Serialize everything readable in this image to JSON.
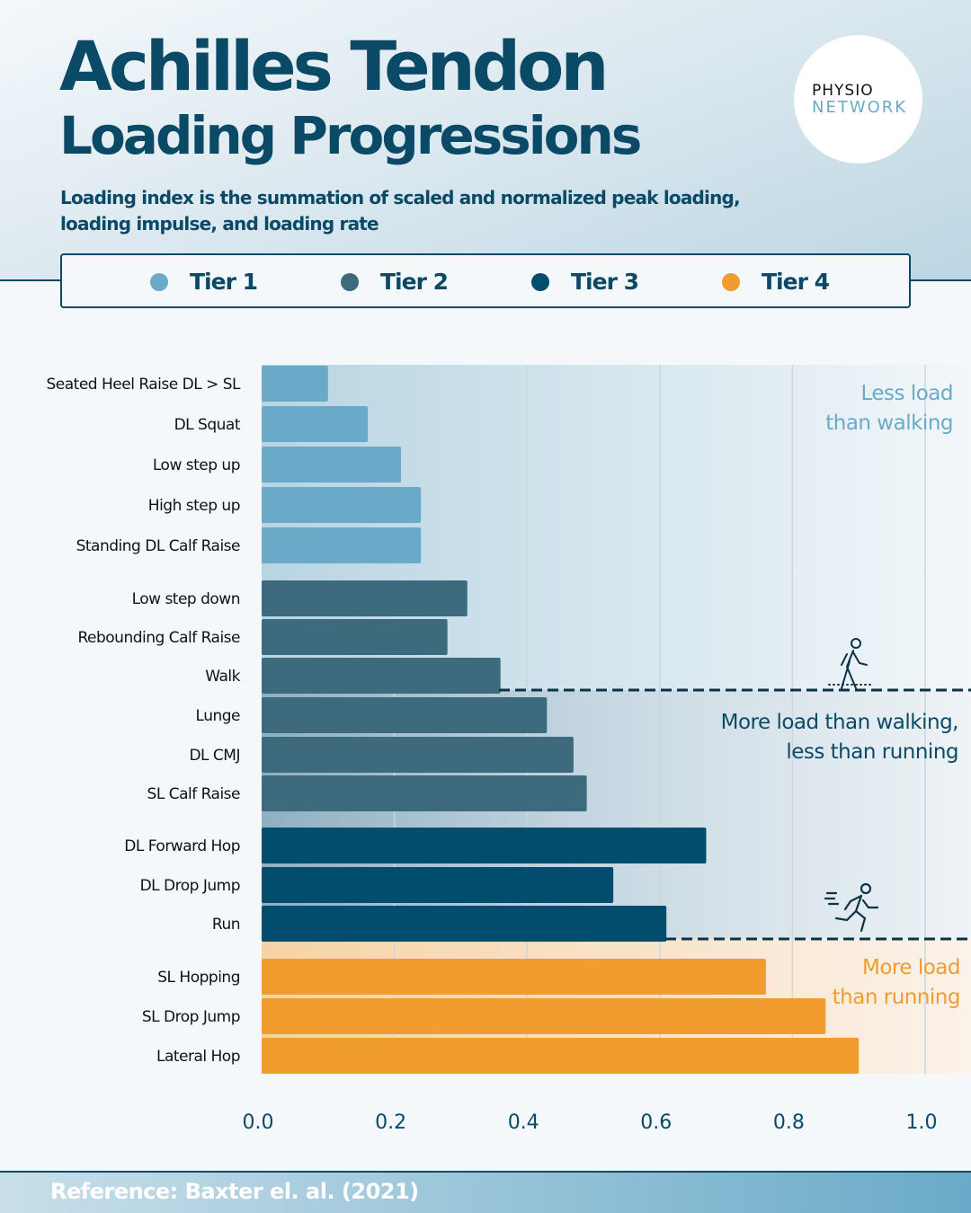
{
  "header": {
    "title_line1": "Achilles Tendon",
    "title_line2": "Loading Progressions",
    "subtitle": "Loading index is the summation of scaled and normalized peak loading, loading impulse, and loading rate"
  },
  "logo": {
    "line1": "PHYSIO",
    "line2": "NETWORK"
  },
  "legend": [
    {
      "label": "Tier 1",
      "color": "#6aaac8"
    },
    {
      "label": "Tier 2",
      "color": "#3e6a7e"
    },
    {
      "label": "Tier 3",
      "color": "#024d6e"
    },
    {
      "label": "Tier 4",
      "color": "#f09c2e"
    }
  ],
  "chart_data": {
    "type": "bar",
    "orientation": "horizontal",
    "xlim": [
      0,
      1.0
    ],
    "grid": true,
    "xticks": [
      "0.0",
      "0.2",
      "0.4",
      "0.6",
      "0.8",
      "1.0"
    ],
    "categories": [
      "Seated Heel Raise DL > SL",
      "DL Squat",
      "Low step up",
      "High step up",
      "Standing DL Calf Raise",
      "Low step down",
      "Rebounding Calf Raise",
      "Walk",
      "Lunge",
      "DL CMJ",
      "SL Calf Raise",
      "DL Forward Hop",
      "DL Drop Jump",
      "Run",
      "SL Hopping",
      "SL Drop Jump",
      "Lateral Hop"
    ],
    "values": [
      0.1,
      0.16,
      0.21,
      0.24,
      0.24,
      0.31,
      0.28,
      0.36,
      0.43,
      0.47,
      0.49,
      0.67,
      0.53,
      0.61,
      0.76,
      0.85,
      0.9
    ],
    "tiers": [
      1,
      1,
      1,
      1,
      1,
      2,
      2,
      2,
      2,
      2,
      2,
      3,
      3,
      3,
      4,
      4,
      4
    ],
    "annotations": [
      {
        "lines": [
          "Less load",
          "than walking"
        ],
        "color": "#6aaac8",
        "icon": "walking-icon"
      },
      {
        "lines": [
          "More load  than walking,",
          "less than running"
        ],
        "color": "#0b4a66",
        "icon": "running-icon"
      },
      {
        "lines": [
          "More load",
          "than running"
        ],
        "color": "#f09c2e"
      }
    ]
  },
  "footer": {
    "reference": "Reference: Baxter el. al. (2021)"
  }
}
